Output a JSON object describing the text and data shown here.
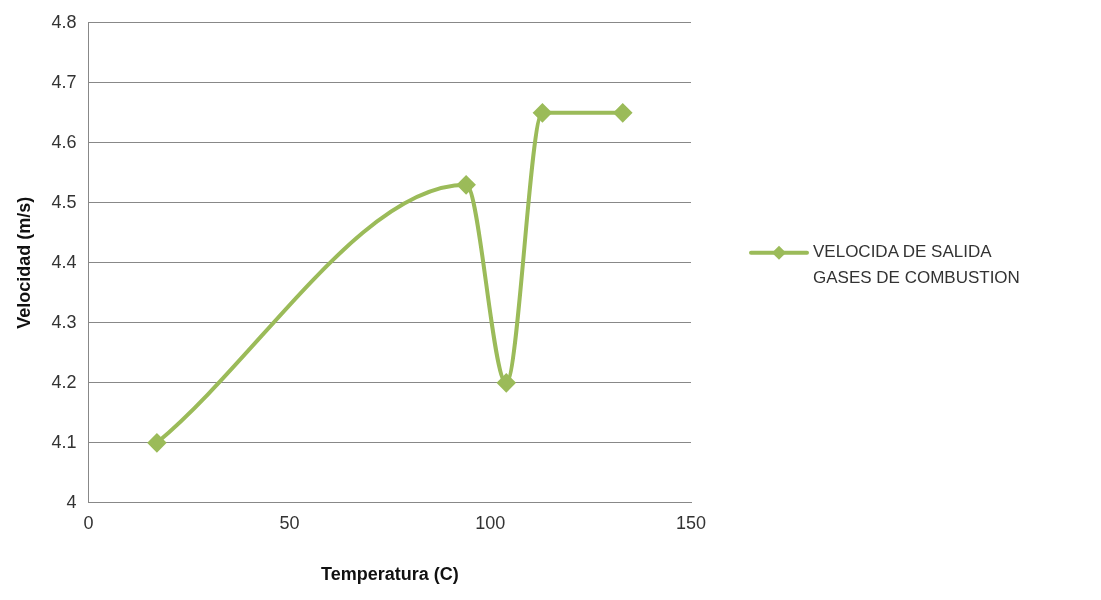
{
  "chart_data": {
    "type": "line",
    "xlabel": "Temperatura (C)",
    "ylabel": "Velocidad (m/s)",
    "x": [
      17,
      94,
      104,
      113,
      133
    ],
    "series": [
      {
        "name": "VELOCIDA DE SALIDA GASES DE COMBUSTION",
        "color": "#9bbb59",
        "values": [
          4.1,
          4.53,
          4.2,
          4.65,
          4.65
        ]
      }
    ],
    "xlim": [
      0,
      150
    ],
    "xticks": [
      0,
      50,
      100,
      150
    ],
    "ylim": [
      4,
      4.8
    ],
    "yticks": [
      4,
      4.1,
      4.2,
      4.3,
      4.4,
      4.5,
      4.6,
      4.7,
      4.8
    ],
    "grid": "y",
    "legend": "right",
    "marker": "diamond",
    "line_style": "solid"
  }
}
